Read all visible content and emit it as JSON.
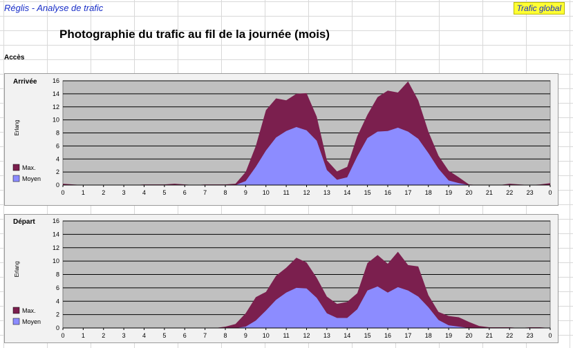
{
  "app_title": "Réglis - Analyse  de trafic",
  "badge": "Trafic global",
  "page_title": "Photographie du trafic au fil de la journée (mois)",
  "section_label": "Accès",
  "colors": {
    "max": "#7b1f4e",
    "moyen": "#8c8cff",
    "plot_bg": "#c0c0c0",
    "frame_bg": "#f2f2f2"
  },
  "chart_data": [
    {
      "type": "area",
      "title": "Arrivée",
      "ylabel": "Erlang",
      "ylim": [
        0,
        16
      ],
      "yticks": [
        0,
        2,
        4,
        6,
        8,
        10,
        12,
        14,
        16
      ],
      "xlim": [
        0,
        24
      ],
      "xticks": [
        "0",
        "1",
        "2",
        "3",
        "4",
        "5",
        "6",
        "7",
        "8",
        "9",
        "10",
        "11",
        "12",
        "13",
        "14",
        "15",
        "16",
        "17",
        "18",
        "19",
        "20",
        "21",
        "22",
        "23",
        "0"
      ],
      "grid": true,
      "legend": "left",
      "x": [
        0,
        0.5,
        1,
        1.5,
        2,
        2.5,
        3,
        3.5,
        4,
        4.5,
        5,
        5.5,
        6,
        6.5,
        7,
        7.5,
        8,
        8.5,
        9,
        9.5,
        10,
        10.5,
        11,
        11.5,
        12,
        12.5,
        13,
        13.5,
        14,
        14.5,
        15,
        15.5,
        16,
        16.5,
        17,
        17.5,
        18,
        18.5,
        19,
        19.5,
        20,
        20.5,
        21,
        21.5,
        22,
        22.5,
        23,
        23.5,
        24
      ],
      "series": [
        {
          "name": "Max.",
          "values": [
            0.2,
            0.1,
            0,
            0,
            0,
            0,
            0,
            0,
            0.1,
            0.1,
            0.1,
            0.2,
            0.1,
            0,
            0.1,
            0.1,
            0.1,
            0.2,
            2,
            6,
            11.5,
            13.3,
            13,
            14,
            14.1,
            10.5,
            3.8,
            2.1,
            2.8,
            7.5,
            10.8,
            13.5,
            14.5,
            14.2,
            15.9,
            13,
            8.2,
            4.5,
            2.2,
            1.2,
            0.1,
            0,
            0,
            0,
            0.2,
            0.1,
            0,
            0.1,
            0.3
          ]
        },
        {
          "name": "Moyen",
          "values": [
            0,
            0,
            0,
            0,
            0,
            0,
            0,
            0,
            0,
            0,
            0,
            0,
            0,
            0,
            0,
            0,
            0,
            0,
            0.6,
            2.8,
            5.3,
            7.3,
            8.3,
            8.9,
            8.4,
            6.8,
            2.3,
            0.8,
            1.2,
            4.4,
            7.2,
            8.2,
            8.3,
            8.8,
            8.2,
            7.1,
            4.9,
            2.5,
            0.7,
            0.3,
            0,
            0,
            0,
            0,
            0,
            0,
            0,
            0,
            0
          ]
        }
      ]
    },
    {
      "type": "area",
      "title": "Départ",
      "ylabel": "Erlang",
      "ylim": [
        0,
        16
      ],
      "yticks": [
        0,
        2,
        4,
        6,
        8,
        10,
        12,
        14,
        16
      ],
      "xlim": [
        0,
        24
      ],
      "xticks": [
        "0",
        "1",
        "2",
        "3",
        "4",
        "5",
        "6",
        "7",
        "8",
        "9",
        "10",
        "11",
        "12",
        "13",
        "14",
        "15",
        "16",
        "17",
        "18",
        "19",
        "20",
        "21",
        "22",
        "23",
        "0"
      ],
      "grid": true,
      "legend": "left",
      "x": [
        0,
        0.5,
        1,
        1.5,
        2,
        2.5,
        3,
        3.5,
        4,
        4.5,
        5,
        5.5,
        6,
        6.5,
        7,
        7.5,
        8,
        8.5,
        9,
        9.5,
        10,
        10.5,
        11,
        11.5,
        12,
        12.5,
        13,
        13.5,
        14,
        14.5,
        15,
        15.5,
        16,
        16.5,
        17,
        17.5,
        18,
        18.5,
        19,
        19.5,
        20,
        20.5,
        21,
        21.5,
        22,
        22.5,
        23,
        23.5,
        24
      ],
      "series": [
        {
          "name": "Max.",
          "values": [
            0,
            0,
            0,
            0,
            0,
            0,
            0,
            0,
            0,
            0,
            0,
            0,
            0,
            0,
            0,
            0,
            0.2,
            0.6,
            2.2,
            4.6,
            5.4,
            7.8,
            9,
            10.5,
            9.8,
            7.5,
            4.7,
            3.6,
            3.9,
            5.2,
            9.7,
            10.9,
            9.6,
            11.4,
            9.4,
            9.2,
            4.9,
            2.4,
            1.8,
            1.6,
            0.9,
            0.3,
            0.1,
            0.1,
            0.1,
            0,
            0.1,
            0.1,
            0
          ]
        },
        {
          "name": "Moyen",
          "values": [
            0,
            0,
            0,
            0,
            0,
            0,
            0,
            0,
            0,
            0,
            0,
            0,
            0,
            0,
            0,
            0,
            0,
            0,
            0.2,
            1.1,
            2.6,
            4.2,
            5.3,
            6,
            5.9,
            4.5,
            2.2,
            1.5,
            1.5,
            2.8,
            5.6,
            6.2,
            5.3,
            6.1,
            5.6,
            4.7,
            3.1,
            1.2,
            0.4,
            0.2,
            0,
            0,
            0,
            0,
            0,
            0,
            0,
            0,
            0
          ]
        }
      ]
    }
  ]
}
